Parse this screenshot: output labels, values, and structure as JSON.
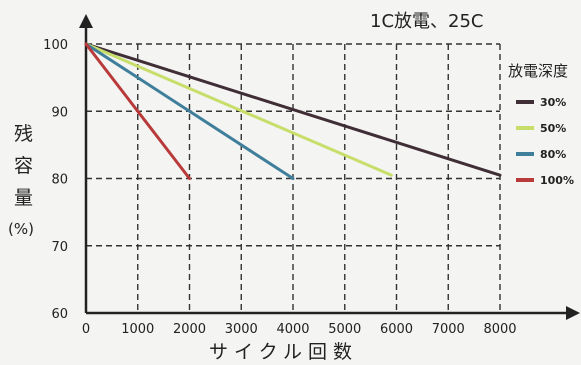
{
  "chart_data": {
    "type": "line",
    "condition": "1C放電、25C",
    "xlabel": "サイクル回数",
    "ylabel_chars": [
      "残",
      "容",
      "量"
    ],
    "ylabel_unit": "(%)",
    "xlim": [
      0,
      8000
    ],
    "ylim": [
      60,
      100
    ],
    "x_ticks": [
      0,
      1000,
      2000,
      3000,
      4000,
      5000,
      6000,
      7000,
      8000
    ],
    "y_ticks": [
      60,
      70,
      80,
      90,
      100
    ],
    "grid": true,
    "legend": {
      "title": "放電深度",
      "placement": "right"
    },
    "series": [
      {
        "name": "30%",
        "color": "#3f2e35",
        "points": [
          [
            0,
            100
          ],
          [
            8000,
            80.5
          ]
        ]
      },
      {
        "name": "50%",
        "color": "#c8de6a",
        "points": [
          [
            0,
            100
          ],
          [
            5900,
            80.5
          ]
        ]
      },
      {
        "name": "80%",
        "color": "#3f7f9b",
        "points": [
          [
            0,
            100
          ],
          [
            4000,
            80
          ]
        ]
      },
      {
        "name": "100%",
        "color": "#b83a3a",
        "points": [
          [
            0,
            100
          ],
          [
            2000,
            80
          ]
        ]
      }
    ]
  }
}
